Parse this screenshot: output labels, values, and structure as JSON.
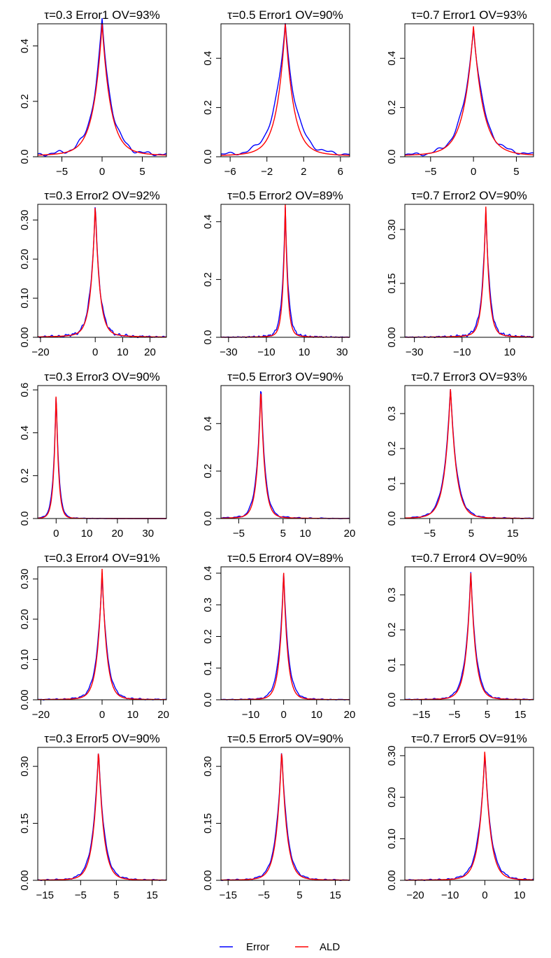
{
  "colors": {
    "error": "#0000ff",
    "ald": "#ff0000",
    "zero_line": "#b3b3b3",
    "axis": "#000000"
  },
  "legend": {
    "placement": "bottom-center",
    "entries": [
      "Error",
      "ALD"
    ]
  },
  "chart_data": [
    {
      "type": "line",
      "title": "τ=0.3 Error1 OV=93%",
      "xlim": [
        -8,
        8
      ],
      "ylim": [
        0,
        0.48
      ],
      "xticks": [
        -5,
        0,
        5
      ],
      "yticks": [
        0.0,
        0.2,
        0.4
      ],
      "peak": 0,
      "peak_error": 0.47,
      "peak_ald": 0.46,
      "sd_error": 1.15,
      "sd_ald": 1.05,
      "tail": 0.02
    },
    {
      "type": "line",
      "title": "τ=0.5 Error1 OV=90%",
      "xlim": [
        -7,
        7
      ],
      "ylim": [
        0,
        0.54
      ],
      "xticks": [
        -6,
        -2,
        2,
        6
      ],
      "yticks": [
        0.0,
        0.2,
        0.4
      ],
      "peak": 0,
      "peak_error": 0.52,
      "peak_ald": 0.52,
      "sd_error": 1.15,
      "sd_ald": 0.9,
      "tail": 0.02
    },
    {
      "type": "line",
      "title": "τ=0.7 Error1 OV=93%",
      "xlim": [
        -8,
        7
      ],
      "ylim": [
        0,
        0.54
      ],
      "xticks": [
        -5,
        0,
        5
      ],
      "yticks": [
        0.0,
        0.2,
        0.4
      ],
      "peak": 0,
      "peak_error": 0.51,
      "peak_ald": 0.51,
      "sd_error": 1.2,
      "sd_ald": 1.1,
      "tail": 0.02
    },
    {
      "type": "line",
      "title": "τ=0.3 Error2 OV=92%",
      "xlim": [
        -21,
        26
      ],
      "ylim": [
        0,
        0.34
      ],
      "xticks": [
        -20,
        0,
        10,
        20
      ],
      "yticks": [
        0.0,
        0.1,
        0.2,
        0.3
      ],
      "ytick_labels": [
        "0.00",
        "0.10",
        "0.20",
        "0.30"
      ],
      "peak": 0,
      "peak_error": 0.33,
      "peak_ald": 0.33,
      "sd_error": 1.7,
      "sd_ald": 1.6,
      "tail": 0.01
    },
    {
      "type": "line",
      "title": "τ=0.5 Error2 OV=89%",
      "xlim": [
        -34,
        34
      ],
      "ylim": [
        0,
        0.46
      ],
      "xticks": [
        -30,
        -10,
        10,
        30
      ],
      "yticks": [
        0.0,
        0.2,
        0.4
      ],
      "peak": 0,
      "peak_error": 0.44,
      "peak_ald": 0.45,
      "sd_error": 1.6,
      "sd_ald": 1.3,
      "tail": 0.01
    },
    {
      "type": "line",
      "title": "τ=0.7 Error2 OV=90%",
      "xlim": [
        -34,
        20
      ],
      "ylim": [
        0,
        0.37
      ],
      "xticks": [
        -30,
        -10,
        10
      ],
      "yticks": [
        0.0,
        0.15,
        0.3
      ],
      "ytick_labels": [
        "0.00",
        "0.15",
        "0.30"
      ],
      "peak": 0,
      "peak_error": 0.35,
      "peak_ald": 0.36,
      "sd_error": 1.6,
      "sd_ald": 1.4,
      "tail": 0.01
    },
    {
      "type": "line",
      "title": "τ=0.3 Error3 OV=90%",
      "xlim": [
        -6,
        36
      ],
      "ylim": [
        0,
        0.62
      ],
      "xticks": [
        0,
        10,
        20,
        30
      ],
      "yticks": [
        0.0,
        0.2,
        0.4,
        0.6
      ],
      "peak": 0,
      "peak_error": 0.59,
      "peak_ald": 0.6,
      "sd_error": 0.9,
      "sd_ald": 0.8,
      "tail": 0.005
    },
    {
      "type": "line",
      "title": "τ=0.5 Error3 OV=90%",
      "xlim": [
        -9,
        20
      ],
      "ylim": [
        0,
        0.56
      ],
      "xticks": [
        -5,
        5,
        10,
        20
      ],
      "yticks": [
        0.0,
        0.2,
        0.4
      ],
      "peak": 0,
      "peak_error": 0.55,
      "peak_ald": 0.55,
      "sd_error": 0.95,
      "sd_ald": 0.85,
      "tail": 0.01
    },
    {
      "type": "line",
      "title": "τ=0.7 Error3 OV=93%",
      "xlim": [
        -11,
        20
      ],
      "ylim": [
        0,
        0.38
      ],
      "xticks": [
        -5,
        5,
        15
      ],
      "yticks": [
        0.0,
        0.1,
        0.2,
        0.3
      ],
      "peak": 0,
      "peak_error": 0.37,
      "peak_ald": 0.37,
      "sd_error": 1.5,
      "sd_ald": 1.4,
      "tail": 0.005
    },
    {
      "type": "line",
      "title": "τ=0.3 Error4 OV=91%",
      "xlim": [
        -21,
        21
      ],
      "ylim": [
        0,
        0.33
      ],
      "xticks": [
        -20,
        0,
        10,
        20
      ],
      "yticks": [
        0.0,
        0.1,
        0.2,
        0.3
      ],
      "ytick_labels": [
        "0.00",
        "0.10",
        "0.20",
        "0.30"
      ],
      "peak": 0,
      "peak_error": 0.31,
      "peak_ald": 0.32,
      "sd_error": 1.7,
      "sd_ald": 1.5,
      "tail": 0.005
    },
    {
      "type": "line",
      "title": "τ=0.5 Error4 OV=89%",
      "xlim": [
        -19,
        20
      ],
      "ylim": [
        0,
        0.42
      ],
      "xticks": [
        -10,
        0,
        10,
        20
      ],
      "yticks": [
        0.0,
        0.1,
        0.2,
        0.3,
        0.4
      ],
      "peak": 0,
      "peak_error": 0.4,
      "peak_ald": 0.4,
      "sd_error": 1.4,
      "sd_ald": 1.2,
      "tail": 0.005
    },
    {
      "type": "line",
      "title": "τ=0.7 Error4 OV=90%",
      "xlim": [
        -20,
        19
      ],
      "ylim": [
        0,
        0.38
      ],
      "xticks": [
        -15,
        -5,
        5,
        15
      ],
      "yticks": [
        0.0,
        0.1,
        0.2,
        0.3
      ],
      "peak": 0,
      "peak_error": 0.36,
      "peak_ald": 0.36,
      "sd_error": 1.6,
      "sd_ald": 1.45,
      "tail": 0.005
    },
    {
      "type": "line",
      "title": "τ=0.3 Error5 OV=90%",
      "xlim": [
        -17,
        19
      ],
      "ylim": [
        0,
        0.35
      ],
      "xticks": [
        -15,
        -5,
        5,
        15
      ],
      "yticks": [
        0.0,
        0.15,
        0.3
      ],
      "ytick_labels": [
        "0.00",
        "0.15",
        "0.30"
      ],
      "peak": 0,
      "peak_error": 0.34,
      "peak_ald": 0.34,
      "sd_error": 1.6,
      "sd_ald": 1.45,
      "tail": 0.005
    },
    {
      "type": "line",
      "title": "τ=0.5 Error5 OV=90%",
      "xlim": [
        -17,
        19
      ],
      "ylim": [
        0,
        0.35
      ],
      "xticks": [
        -15,
        -5,
        5,
        15
      ],
      "yticks": [
        0.0,
        0.15,
        0.3
      ],
      "ytick_labels": [
        "0.00",
        "0.15",
        "0.30"
      ],
      "peak": 0,
      "peak_error": 0.34,
      "peak_ald": 0.34,
      "sd_error": 1.6,
      "sd_ald": 1.45,
      "tail": 0.005
    },
    {
      "type": "line",
      "title": "τ=0.7 Error5 OV=91%",
      "xlim": [
        -23,
        14
      ],
      "ylim": [
        0,
        0.32
      ],
      "xticks": [
        -20,
        -10,
        0,
        10
      ],
      "yticks": [
        0.0,
        0.1,
        0.2,
        0.3
      ],
      "ytick_labels": [
        "0.00",
        "0.10",
        "0.20",
        "0.30"
      ],
      "peak": 0,
      "peak_error": 0.3,
      "peak_ald": 0.31,
      "sd_error": 1.8,
      "sd_ald": 1.6,
      "tail": 0.005
    }
  ]
}
